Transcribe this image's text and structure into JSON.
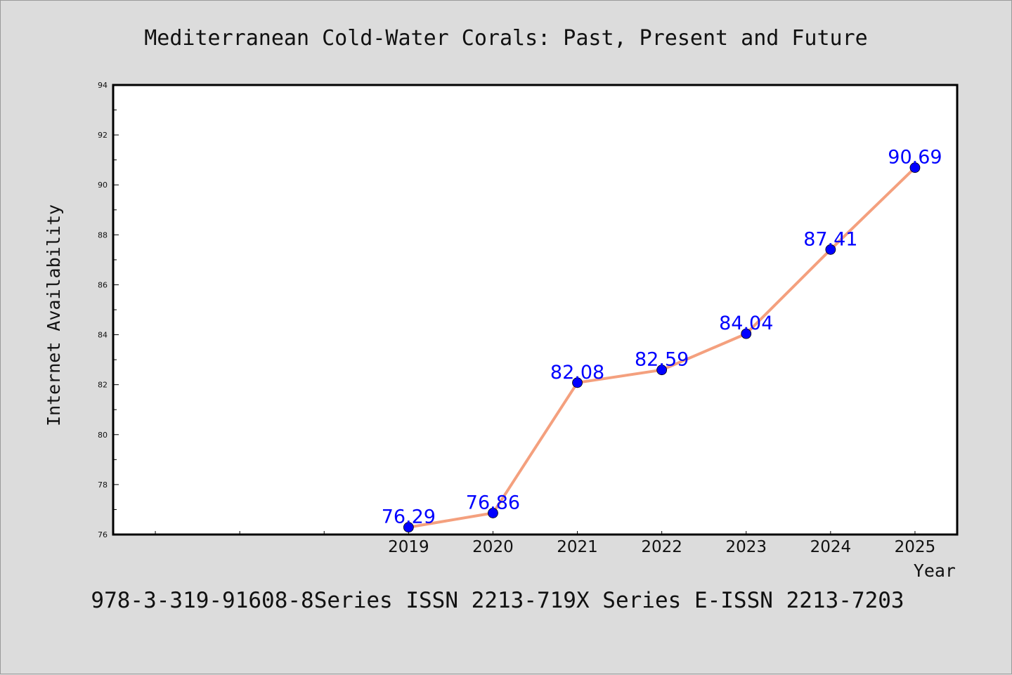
{
  "chart_data": {
    "type": "line",
    "title": "Mediterranean Cold-Water Corals: Past, Present and Future",
    "xlabel": "Year",
    "ylabel": "Internet Availability",
    "x": [
      2019,
      2020,
      2021,
      2022,
      2023,
      2024,
      2025
    ],
    "series": [
      {
        "values": [
          76.29,
          76.86,
          82.08,
          82.59,
          84.04,
          87.41,
          90.69
        ]
      }
    ],
    "data_labels": [
      "76.29",
      "76.86",
      "82.08",
      "82.59",
      "84.04",
      "87.41",
      "90.69"
    ],
    "ylim": [
      76,
      94
    ],
    "xlim": [
      2015.5,
      2025.5
    ],
    "yticks": [
      76,
      78,
      80,
      82,
      84,
      86,
      88,
      90,
      92,
      94
    ],
    "xticks": [
      2019,
      2020,
      2021,
      2022,
      2023,
      2024,
      2025
    ],
    "grid": false,
    "line_color": "#f4a07e",
    "marker_color": "#0000ff",
    "label_color": "#0000ff"
  },
  "footer": {
    "text": "978-3-319-91608-8Series ISSN 2213-719X Series E-ISSN 2213-7203"
  }
}
